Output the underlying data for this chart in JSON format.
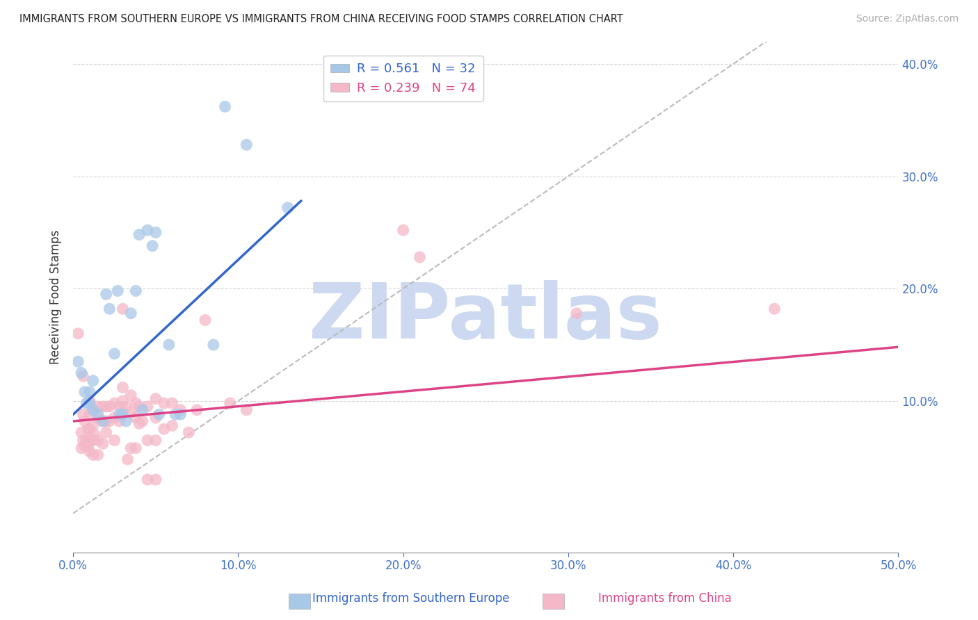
{
  "title": "IMMIGRANTS FROM SOUTHERN EUROPE VS IMMIGRANTS FROM CHINA RECEIVING FOOD STAMPS CORRELATION CHART",
  "source": "Source: ZipAtlas.com",
  "ylabel": "Receiving Food Stamps",
  "xlim": [
    0.0,
    0.5
  ],
  "ylim": [
    -0.035,
    0.42
  ],
  "xticks": [
    0.0,
    0.1,
    0.2,
    0.3,
    0.4,
    0.5
  ],
  "yticks_right": [
    0.1,
    0.2,
    0.3,
    0.4
  ],
  "ytick_labels_right": [
    "10.0%",
    "20.0%",
    "30.0%",
    "40.0%"
  ],
  "xtick_labels": [
    "0.0%",
    "10.0%",
    "20.0%",
    "30.0%",
    "40.0%",
    "50.0%"
  ],
  "legend_blue_label": "R = 0.561   N = 32",
  "legend_pink_label": "R = 0.239   N = 74",
  "blue_color": "#a8c8e8",
  "pink_color": "#f4b8c8",
  "blue_line_color": "#3366cc",
  "pink_line_color": "#dd4488",
  "axis_color": "#4472c4",
  "blue_scatter": [
    [
      0.003,
      0.135
    ],
    [
      0.005,
      0.125
    ],
    [
      0.007,
      0.108
    ],
    [
      0.008,
      0.098
    ],
    [
      0.01,
      0.098
    ],
    [
      0.01,
      0.108
    ],
    [
      0.012,
      0.092
    ],
    [
      0.012,
      0.118
    ],
    [
      0.015,
      0.088
    ],
    [
      0.018,
      0.082
    ],
    [
      0.02,
      0.195
    ],
    [
      0.022,
      0.182
    ],
    [
      0.025,
      0.142
    ],
    [
      0.027,
      0.198
    ],
    [
      0.028,
      0.088
    ],
    [
      0.03,
      0.088
    ],
    [
      0.032,
      0.082
    ],
    [
      0.035,
      0.178
    ],
    [
      0.038,
      0.198
    ],
    [
      0.04,
      0.248
    ],
    [
      0.042,
      0.092
    ],
    [
      0.045,
      0.252
    ],
    [
      0.048,
      0.238
    ],
    [
      0.05,
      0.25
    ],
    [
      0.052,
      0.088
    ],
    [
      0.058,
      0.15
    ],
    [
      0.062,
      0.088
    ],
    [
      0.065,
      0.088
    ],
    [
      0.085,
      0.15
    ],
    [
      0.092,
      0.362
    ],
    [
      0.105,
      0.328
    ],
    [
      0.13,
      0.272
    ]
  ],
  "pink_scatter": [
    [
      0.003,
      0.16
    ],
    [
      0.005,
      0.072
    ],
    [
      0.005,
      0.058
    ],
    [
      0.006,
      0.122
    ],
    [
      0.006,
      0.088
    ],
    [
      0.006,
      0.065
    ],
    [
      0.007,
      0.082
    ],
    [
      0.007,
      0.06
    ],
    [
      0.008,
      0.065
    ],
    [
      0.009,
      0.075
    ],
    [
      0.009,
      0.06
    ],
    [
      0.01,
      0.088
    ],
    [
      0.01,
      0.1
    ],
    [
      0.01,
      0.075
    ],
    [
      0.01,
      0.065
    ],
    [
      0.01,
      0.055
    ],
    [
      0.012,
      0.092
    ],
    [
      0.012,
      0.078
    ],
    [
      0.012,
      0.065
    ],
    [
      0.012,
      0.052
    ],
    [
      0.013,
      0.07
    ],
    [
      0.015,
      0.095
    ],
    [
      0.015,
      0.085
    ],
    [
      0.015,
      0.065
    ],
    [
      0.015,
      0.052
    ],
    [
      0.018,
      0.095
    ],
    [
      0.018,
      0.082
    ],
    [
      0.018,
      0.062
    ],
    [
      0.02,
      0.095
    ],
    [
      0.02,
      0.082
    ],
    [
      0.02,
      0.072
    ],
    [
      0.022,
      0.095
    ],
    [
      0.022,
      0.082
    ],
    [
      0.025,
      0.098
    ],
    [
      0.025,
      0.085
    ],
    [
      0.025,
      0.065
    ],
    [
      0.028,
      0.095
    ],
    [
      0.028,
      0.082
    ],
    [
      0.03,
      0.182
    ],
    [
      0.03,
      0.112
    ],
    [
      0.03,
      0.1
    ],
    [
      0.03,
      0.09
    ],
    [
      0.032,
      0.095
    ],
    [
      0.033,
      0.048
    ],
    [
      0.035,
      0.105
    ],
    [
      0.035,
      0.09
    ],
    [
      0.035,
      0.058
    ],
    [
      0.038,
      0.098
    ],
    [
      0.038,
      0.085
    ],
    [
      0.038,
      0.058
    ],
    [
      0.04,
      0.095
    ],
    [
      0.04,
      0.08
    ],
    [
      0.042,
      0.082
    ],
    [
      0.045,
      0.095
    ],
    [
      0.045,
      0.065
    ],
    [
      0.045,
      0.03
    ],
    [
      0.05,
      0.102
    ],
    [
      0.05,
      0.085
    ],
    [
      0.05,
      0.065
    ],
    [
      0.05,
      0.03
    ],
    [
      0.055,
      0.098
    ],
    [
      0.055,
      0.075
    ],
    [
      0.06,
      0.098
    ],
    [
      0.06,
      0.078
    ],
    [
      0.065,
      0.092
    ],
    [
      0.07,
      0.072
    ],
    [
      0.075,
      0.092
    ],
    [
      0.08,
      0.172
    ],
    [
      0.095,
      0.098
    ],
    [
      0.105,
      0.092
    ],
    [
      0.2,
      0.252
    ],
    [
      0.21,
      0.228
    ],
    [
      0.305,
      0.178
    ],
    [
      0.425,
      0.182
    ]
  ],
  "blue_line": {
    "x0": 0.0,
    "x1": 0.138,
    "y0": 0.088,
    "y1": 0.278
  },
  "pink_line": {
    "x0": 0.0,
    "x1": 0.5,
    "y0": 0.082,
    "y1": 0.148
  },
  "diag_line": {
    "x0": 0.0,
    "x1": 0.42,
    "y0": 0.0,
    "y1": 0.42
  },
  "watermark_text": "ZIPatlas",
  "watermark_color": "#ccd9f0",
  "watermark_fontsize": 80,
  "background_color": "#ffffff",
  "grid_color": "#cccccc",
  "axis_label_color": "#4472c4",
  "bottom_label_blue": "Immigrants from Southern Europe",
  "bottom_label_pink": "Immigrants from China"
}
